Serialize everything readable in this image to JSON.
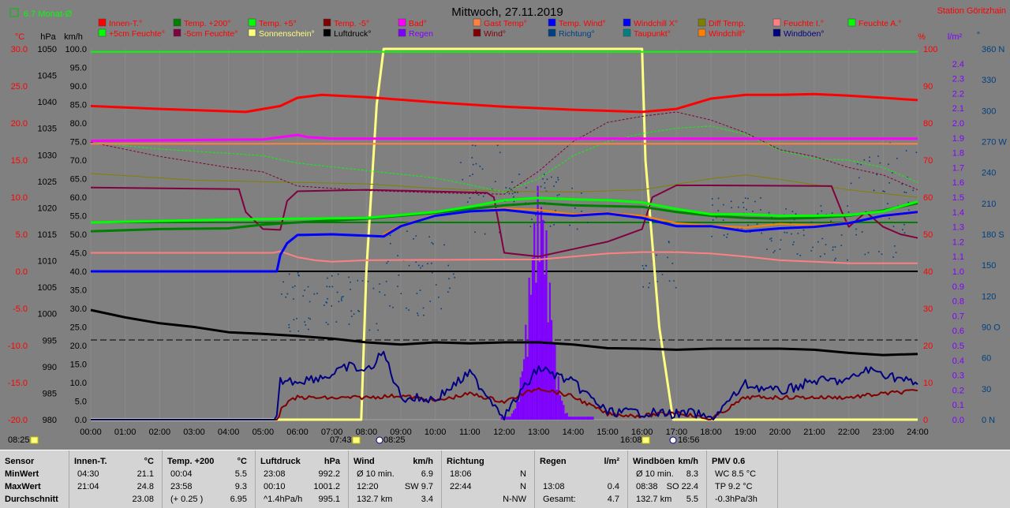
{
  "header": {
    "title": "Mittwoch, 27.11.2019",
    "station": "Station Göritzhain",
    "month_avg": "6.7 Monat-Ø"
  },
  "axis_units": {
    "temp": "°C",
    "pressure": "hPa",
    "wind": "km/h",
    "percent": "%",
    "rain": "l/m²",
    "direction": "°"
  },
  "legend": [
    {
      "label": "Innen-T.°",
      "color": "#ff0000",
      "text_color": "#ff0000"
    },
    {
      "label": "Temp. +200°",
      "color": "#008000",
      "text_color": "#ff0000"
    },
    {
      "label": "Temp. +5°",
      "color": "#00ff00",
      "text_color": "#ff0000"
    },
    {
      "label": "Temp. -5°",
      "color": "#800000",
      "text_color": "#ff0000"
    },
    {
      "label": "Bad°",
      "color": "#ff00ff",
      "text_color": "#ff0000"
    },
    {
      "label": "Gast Temp°",
      "color": "#ff8040",
      "text_color": "#ff0000"
    },
    {
      "label": "Temp. Wind°",
      "color": "#0000ff",
      "text_color": "#ff0000"
    },
    {
      "label": "Windchill X°",
      "color": "#0000ff",
      "text_color": "#ff0000"
    },
    {
      "label": "Diff Temp.",
      "color": "#808000",
      "text_color": "#ff0000"
    },
    {
      "label": "Feuchte I.°",
      "color": "#ff8080",
      "text_color": "#ff0000"
    },
    {
      "label": "Feuchte A.°",
      "color": "#00ff00",
      "text_color": "#ff0000"
    },
    {
      "label": "+5cm Feuchte°",
      "color": "#00ff00",
      "text_color": "#ff0000"
    },
    {
      "label": "-5cm Feuchte°",
      "color": "#800040",
      "text_color": "#ff0000"
    },
    {
      "label": "Sonnenschein°",
      "color": "#ffff80",
      "text_color": "#ffff80"
    },
    {
      "label": "Luftdruck°",
      "color": "#000000",
      "text_color": "#000000"
    },
    {
      "label": "Regen",
      "color": "#8000ff",
      "text_color": "#8000ff"
    },
    {
      "label": "Wind°",
      "color": "#800000",
      "text_color": "#800000"
    },
    {
      "label": "Richtung°",
      "color": "#004080",
      "text_color": "#004080"
    },
    {
      "label": "Taupunkt°",
      "color": "#008080",
      "text_color": "#ff0000"
    },
    {
      "label": "Windchill°",
      "color": "#ff8000",
      "text_color": "#ff0000"
    },
    {
      "label": "Windböen°",
      "color": "#000080",
      "text_color": "#000080"
    }
  ],
  "chart_data": {
    "type": "line",
    "title": "Mittwoch, 27.11.2019",
    "x_ticks": [
      "00:00",
      "01:00",
      "02:00",
      "03:00",
      "04:00",
      "05:00",
      "06:00",
      "07:00",
      "08:00",
      "09:00",
      "10:00",
      "11:00",
      "12:00",
      "13:00",
      "14:00",
      "15:00",
      "16:00",
      "17:00",
      "18:00",
      "19:00",
      "20:00",
      "21:00",
      "22:00",
      "23:00",
      "24:00"
    ],
    "y_temp_ticks": [
      "30.0",
      "25.0",
      "20.0",
      "15.0",
      "10.0",
      "5.0",
      "0.0",
      "-5.0",
      "-10.0",
      "-15.0",
      "-20.0"
    ],
    "y_pressure_ticks": [
      "1050",
      "1045",
      "1040",
      "1035",
      "1030",
      "1025",
      "1020",
      "1015",
      "1010",
      "1005",
      "1000",
      "995",
      "990",
      "985",
      "980"
    ],
    "y_wind_ticks": [
      "100.0",
      "95.0",
      "90.0",
      "85.0",
      "80.0",
      "75.0",
      "70.0",
      "65.0",
      "60.0",
      "55.0",
      "50.0",
      "45.0",
      "40.0",
      "35.0",
      "30.0",
      "25.0",
      "20.0",
      "15.0",
      "10.0",
      "5.0",
      "0.0"
    ],
    "y_percent_ticks": [
      "100",
      "90",
      "80",
      "70",
      "60",
      "50",
      "40",
      "30",
      "20",
      "10",
      "0"
    ],
    "y_rain_ticks": [
      "2.4",
      "2.3",
      "2.2",
      "2.1",
      "2.0",
      "1.9",
      "1.8",
      "1.7",
      "1.6",
      "1.5",
      "1.4",
      "1.3",
      "1.2",
      "1.1",
      "1.0",
      "0.9",
      "0.8",
      "0.7",
      "0.6",
      "0.5",
      "0.4",
      "0.3",
      "0.2",
      "0.1",
      "0.0"
    ],
    "y_dir_ticks": [
      "360 N",
      "330",
      "300",
      "270 W",
      "240",
      "210",
      "180 S",
      "150",
      "120",
      "90 O",
      "60",
      "30",
      "0 N"
    ],
    "ylim_temp": [
      -20,
      30
    ],
    "ylim_pressure": [
      980,
      1050
    ],
    "ylim_wind": [
      0,
      100
    ],
    "ylim_percent": [
      0,
      100
    ],
    "ylim_rain": [
      0,
      2.5
    ],
    "series": [
      {
        "name": "Innen-T.°",
        "axis": "temp",
        "color": "#ff0000",
        "width": 3,
        "x": [
          0,
          2,
          4.5,
          5.5,
          6,
          6.7,
          8,
          10,
          12,
          14,
          16,
          17,
          18,
          19,
          20,
          21,
          22,
          23,
          24
        ],
        "y": [
          22.3,
          21.9,
          21.5,
          22.3,
          23.4,
          23.8,
          23.5,
          22.8,
          22.2,
          21.8,
          21.5,
          21.9,
          23.3,
          23.8,
          23.8,
          23.9,
          23.7,
          23.4,
          23.1
        ]
      },
      {
        "name": "Bad°",
        "axis": "temp",
        "color": "#ff00ff",
        "width": 3,
        "x": [
          0,
          5,
          5.5,
          6,
          6.3,
          7,
          12,
          18,
          24
        ],
        "y": [
          17.6,
          17.8,
          18.1,
          18.4,
          18.1,
          17.9,
          17.9,
          17.9,
          17.9
        ]
      },
      {
        "name": "Feuchte A.°",
        "axis": "temp",
        "color": "#00ff00",
        "width": 2,
        "x": [
          0,
          24
        ],
        "y": [
          29.6,
          29.6
        ]
      },
      {
        "name": "Gast Temp°",
        "axis": "temp",
        "color": "#ff8040",
        "width": 2,
        "x": [
          0,
          24
        ],
        "y": [
          17.2,
          17.2
        ]
      },
      {
        "name": "Temp. +5°",
        "axis": "temp",
        "color": "#00ff00",
        "width": 3,
        "x": [
          0,
          4,
          6,
          8,
          10,
          11,
          12,
          13,
          14,
          15,
          16,
          17,
          18,
          19,
          20,
          21,
          22,
          23,
          24
        ],
        "y": [
          6.6,
          7,
          7.1,
          7.2,
          8,
          8.7,
          9.6,
          9.9,
          9.7,
          9.6,
          9.3,
          8.4,
          7.7,
          7.7,
          7.5,
          7.5,
          7.6,
          8.1,
          9.4
        ]
      },
      {
        "name": "Temp. +200°",
        "axis": "temp",
        "color": "#008000",
        "width": 3,
        "x": [
          0,
          2,
          4,
          5,
          6,
          8,
          10,
          11,
          12,
          13,
          14,
          15,
          16,
          17,
          18,
          19,
          20,
          21,
          22,
          23,
          24
        ],
        "y": [
          5.4,
          5.7,
          5.8,
          6.3,
          6.6,
          7.1,
          7.9,
          8.4,
          8.9,
          9.2,
          8.9,
          8.8,
          8.7,
          8,
          7.5,
          7.2,
          7.1,
          7.2,
          7.5,
          8.2,
          9.2
        ]
      },
      {
        "name": "Temp. Wind°",
        "axis": "temp",
        "color": "#0000ff",
        "width": 3,
        "x": [
          0,
          5.4,
          5.5,
          5.7,
          6,
          7,
          8.5,
          9,
          10,
          11,
          12,
          13,
          14,
          15,
          16,
          17,
          18,
          19,
          20,
          21,
          22,
          23,
          24
        ],
        "y": [
          0,
          0,
          2.2,
          3.8,
          4.9,
          5,
          4.7,
          6.1,
          7.5,
          8.1,
          8.3,
          7.8,
          7.5,
          7.8,
          7.2,
          6.1,
          6.1,
          5.4,
          5.8,
          6,
          6.5,
          7.5,
          8
        ]
      },
      {
        "name": "Windchill°",
        "axis": "temp",
        "color": "#ff8000",
        "width": 2,
        "x": [
          8.5,
          9,
          10,
          11,
          12,
          13,
          14,
          15,
          16,
          17,
          18,
          19,
          20,
          21,
          22,
          23,
          24
        ],
        "y": [
          5,
          6.2,
          7.6,
          8.1,
          8.5,
          8.3,
          7.7,
          7.9,
          7.5,
          6.5,
          6.2,
          5.9,
          6.4,
          6.2,
          6.6,
          7.4,
          7.9
        ]
      },
      {
        "name": "Temp. -5°",
        "axis": "temp",
        "color": "#800040",
        "width": 2,
        "x": [
          0,
          4.3,
          4.5,
          5,
          5.5,
          5.7,
          6,
          8,
          11.5,
          11.7,
          12,
          13,
          14,
          15,
          16,
          16.3,
          17,
          18,
          21.5,
          21.8,
          22,
          22.5,
          23,
          23.5,
          24
        ],
        "y": [
          11.3,
          11.1,
          8,
          5.7,
          5.6,
          9.5,
          10.8,
          11,
          10.6,
          10,
          2.5,
          2,
          3,
          4,
          5.7,
          10,
          11.6,
          11.6,
          11.5,
          8,
          6,
          8,
          6,
          5,
          4.5
        ]
      },
      {
        "name": "Feuchte I.°",
        "axis": "temp",
        "color": "#ff8080",
        "width": 2,
        "x": [
          0,
          5.3,
          5.5,
          6,
          6.5,
          7,
          8,
          12,
          13,
          14,
          15,
          16,
          17,
          18,
          19,
          20,
          21,
          22,
          24
        ],
        "y": [
          2.5,
          2.5,
          2.7,
          1.9,
          1.5,
          1.3,
          1.5,
          1.6,
          1.6,
          2,
          2.4,
          2.6,
          2.6,
          2.4,
          2,
          1.5,
          1.3,
          1.1,
          1.1
        ]
      },
      {
        "name": "+5cm Feuchte°",
        "axis": "temp",
        "color": "#00ff00",
        "width": 1,
        "dashed": true,
        "x": [
          0,
          2,
          4,
          5,
          6,
          8,
          10,
          12,
          13,
          14,
          15,
          16,
          17,
          18,
          19,
          20,
          21,
          22,
          23,
          24
        ],
        "y": [
          17.4,
          16.5,
          15.9,
          15.6,
          14.6,
          13.6,
          12.6,
          10.7,
          12.5,
          15.6,
          17.5,
          18.6,
          19.3,
          19.6,
          18.5,
          16.3,
          15.2,
          15,
          14,
          12
        ]
      },
      {
        "name": "-5cm Feuchte°",
        "axis": "temp",
        "color": "#800040",
        "width": 1,
        "dashed": true,
        "x": [
          0,
          2,
          4,
          5,
          6,
          8,
          10,
          12,
          13,
          14,
          15,
          16,
          17,
          18,
          19,
          20,
          21,
          22,
          23,
          24
        ],
        "y": [
          17.4,
          15.5,
          14,
          13.4,
          11.5,
          10.9,
          10.6,
          10.4,
          13.5,
          17.5,
          20.1,
          20.9,
          21.5,
          20.4,
          18.7,
          16.4,
          15.5,
          14,
          13,
          11
        ]
      },
      {
        "name": "Diff Temp.",
        "axis": "temp",
        "color": "#808000",
        "width": 1,
        "x": [
          0,
          3,
          6,
          8,
          10,
          12,
          14,
          16,
          18,
          19,
          20,
          22,
          24
        ],
        "y": [
          13.2,
          12.3,
          12,
          11.8,
          11.2,
          10.8,
          10.7,
          11,
          12.5,
          13,
          12.4,
          11,
          10
        ]
      },
      {
        "name": "Luftdruck°",
        "axis": "pressure",
        "color": "#000000",
        "width": 3,
        "x": [
          0,
          1,
          2,
          3,
          4,
          5,
          6,
          7,
          8,
          9,
          10,
          11,
          12,
          13,
          14,
          15,
          16,
          17,
          18,
          19,
          20,
          21,
          22,
          23,
          24
        ],
        "y": [
          1000.7,
          999.3,
          998.2,
          997.5,
          996.5,
          996.2,
          995.8,
          995.3,
          994.6,
          994.2,
          994.6,
          994.4,
          994.6,
          994.6,
          994.2,
          993.5,
          993.4,
          993.2,
          993.4,
          993.4,
          993.4,
          993.2,
          992.6,
          992.2,
          992.4
        ]
      },
      {
        "name": "Wind°",
        "axis": "wind",
        "color": "#800000",
        "width": 2,
        "x": [
          0,
          5.4,
          5.6,
          6,
          7,
          8,
          9,
          10,
          11,
          12,
          13,
          14,
          15,
          16,
          17,
          18,
          19,
          20,
          21,
          22,
          23,
          24
        ],
        "y": [
          0,
          0,
          4,
          6,
          5.8,
          6,
          6.5,
          5,
          7,
          4.8,
          8.6,
          6.2,
          1.5,
          1,
          2,
          0,
          6,
          6,
          6,
          6,
          7,
          7.8
        ]
      },
      {
        "name": "Windböen°",
        "axis": "wind",
        "color": "#000080",
        "width": 2,
        "x": [
          0,
          5.4,
          5.5,
          6,
          7,
          7.5,
          8,
          8.5,
          9,
          10,
          11,
          12,
          13,
          14,
          15,
          16,
          17,
          17.5,
          18,
          19,
          20,
          21,
          22,
          22.5,
          23,
          24
        ],
        "y": [
          0,
          0,
          10.5,
          10.5,
          12,
          14.5,
          13,
          18,
          6,
          5.5,
          12.5,
          1,
          14,
          10,
          2,
          2,
          1.5,
          1.8,
          0,
          9.5,
          7.5,
          10.5,
          10.5,
          13.5,
          12.5,
          9.5
        ]
      },
      {
        "name": "Sonnenschein°",
        "axis": "wind",
        "color": "#ffff80",
        "width": 3,
        "x": [
          0,
          7.85,
          8,
          8.3,
          8.5,
          16,
          16.1,
          16.5,
          16.9,
          24
        ],
        "y": [
          0,
          0,
          40,
          85,
          100,
          100,
          70,
          25,
          0,
          0
        ]
      }
    ],
    "rain_bars": {
      "x_start": 11.9,
      "x_end": 14.6,
      "peak_x": 13.0,
      "peak": 1.6
    },
    "wind_dir_scatter_note": "Richtung° shown as scattered points",
    "reference_lines": [
      {
        "axis": "wind",
        "y": 21.5,
        "style": "dashed",
        "color": "#000000"
      },
      {
        "axis": "wind",
        "y": 40,
        "style": "solid",
        "color": "#000000"
      },
      {
        "axis": "temp",
        "y": 6.6,
        "style": "solid",
        "color": "#008000"
      }
    ]
  },
  "sun": {
    "left_time": "08:25",
    "sunrise": "07:43",
    "rise_icon_time": "08:25",
    "sunset": "16:08",
    "set_icon_time": "16:56"
  },
  "stats": {
    "row_labels": {
      "header": "Sensor",
      "min": "MinWert",
      "max": "MaxWert",
      "avg": "Durchschnitt"
    },
    "blocks": [
      {
        "title": "Innen-T.",
        "unit": "°C",
        "rows": [
          [
            "04:30",
            "21.1"
          ],
          [
            "21:04",
            "24.8"
          ],
          [
            "",
            "23.08"
          ]
        ]
      },
      {
        "title": "Temp. +200",
        "unit": "°C",
        "rows": [
          [
            "00:04",
            "5.5"
          ],
          [
            "23:58",
            "9.3"
          ],
          [
            "(+ 0.25 )",
            "6.95"
          ]
        ]
      },
      {
        "title": "Luftdruck",
        "unit": "hPa",
        "rows": [
          [
            "23:08",
            "992.2"
          ],
          [
            "00:10",
            "1001.2"
          ],
          [
            "^1.4hPa/h",
            "995.1"
          ]
        ]
      },
      {
        "title": "Wind",
        "unit": "km/h",
        "rows": [
          [
            "Ø 10 min.",
            "6.9"
          ],
          [
            "12:20",
            "SW 9.7"
          ],
          [
            "132.7 km",
            "3.4"
          ]
        ]
      },
      {
        "title": "Richtung",
        "unit": "",
        "rows": [
          [
            "18:06",
            "N"
          ],
          [
            "22:44",
            "N"
          ],
          [
            "",
            "N-NW"
          ]
        ]
      },
      {
        "title": "Regen",
        "unit": "l/m²",
        "rows": [
          [
            "",
            ""
          ],
          [
            "13:08",
            "0.4"
          ],
          [
            "Gesamt:",
            "4.7"
          ]
        ]
      },
      {
        "title": "Windböen",
        "unit": "km/h",
        "rows": [
          [
            "Ø 10 min.",
            "8.3"
          ],
          [
            "08:38",
            "SO 22.4"
          ],
          [
            "132.7 km",
            "5.5"
          ]
        ]
      },
      {
        "title": "PMV 0.6",
        "unit": "",
        "rows": [
          [
            "WC 8.5 °C",
            ""
          ],
          [
            "TP 9.2 °C",
            ""
          ],
          [
            "-0.3hPa/3h",
            ""
          ]
        ]
      }
    ]
  }
}
